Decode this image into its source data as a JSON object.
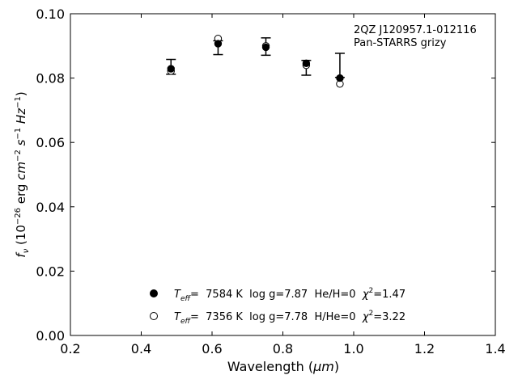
{
  "chart_data": {
    "type": "scatter",
    "annotation": {
      "line1": "2QZ J120957.1-012116",
      "line2": "Pan-STARRS grizy"
    },
    "xlabel": {
      "main": "Wavelength (",
      "unit": "μm",
      "close": ")"
    },
    "ylabel": {
      "f": "f",
      "sub": "ν",
      "open": " (10",
      "exp1": "−26",
      "erg": " erg ",
      "cm": "cm",
      "exp2": "−2",
      "s": " s",
      "exp3": "−1",
      "hz": " Hz",
      "exp4": "−1",
      "close": ")"
    },
    "xlim": [
      0.2,
      1.4
    ],
    "ylim": [
      0.0,
      0.1
    ],
    "xticks": [
      "0.2",
      "0.4",
      "0.6",
      "0.8",
      "1.0",
      "1.2",
      "1.4"
    ],
    "yticks": [
      "0.00",
      "0.02",
      "0.04",
      "0.06",
      "0.08",
      "0.10"
    ],
    "grid": false,
    "legend_position": "lower-center",
    "observed": [
      {
        "x": 0.484,
        "y": 0.0835,
        "err_low": 0.0023,
        "err_high": 0.0023
      },
      {
        "x": 0.617,
        "y": 0.0908,
        "err_low": 0.0035,
        "err_high": 0.0008
      },
      {
        "x": 0.752,
        "y": 0.0898,
        "err_low": 0.0027,
        "err_high": 0.0027
      },
      {
        "x": 0.866,
        "y": 0.0832,
        "err_low": 0.0023,
        "err_high": 0.0023
      },
      {
        "x": 0.961,
        "y": 0.0802,
        "err_low": 0.0,
        "err_high": 0.0075
      }
    ],
    "series": [
      {
        "marker": "filled-circle",
        "legend": {
          "t": "T",
          "tsub": "eff",
          "a": "=  7584 K  log g=7.87  He/H=0  ",
          "chi": "χ",
          "chisup": "2",
          "b": "=1.47"
        },
        "points": [
          {
            "x": 0.484,
            "y": 0.0829
          },
          {
            "x": 0.617,
            "y": 0.0907
          },
          {
            "x": 0.752,
            "y": 0.0896
          },
          {
            "x": 0.866,
            "y": 0.0846
          },
          {
            "x": 0.961,
            "y": 0.08
          }
        ]
      },
      {
        "marker": "open-circle",
        "legend": {
          "t": "T",
          "tsub": "eff",
          "a": "=  7356 K  log g=7.78  H/He=0  ",
          "chi": "χ",
          "chisup": "2",
          "b": "=3.22"
        },
        "points": [
          {
            "x": 0.484,
            "y": 0.0822
          },
          {
            "x": 0.617,
            "y": 0.0923
          },
          {
            "x": 0.752,
            "y": 0.09
          },
          {
            "x": 0.866,
            "y": 0.084
          },
          {
            "x": 0.961,
            "y": 0.0782
          }
        ]
      }
    ]
  }
}
